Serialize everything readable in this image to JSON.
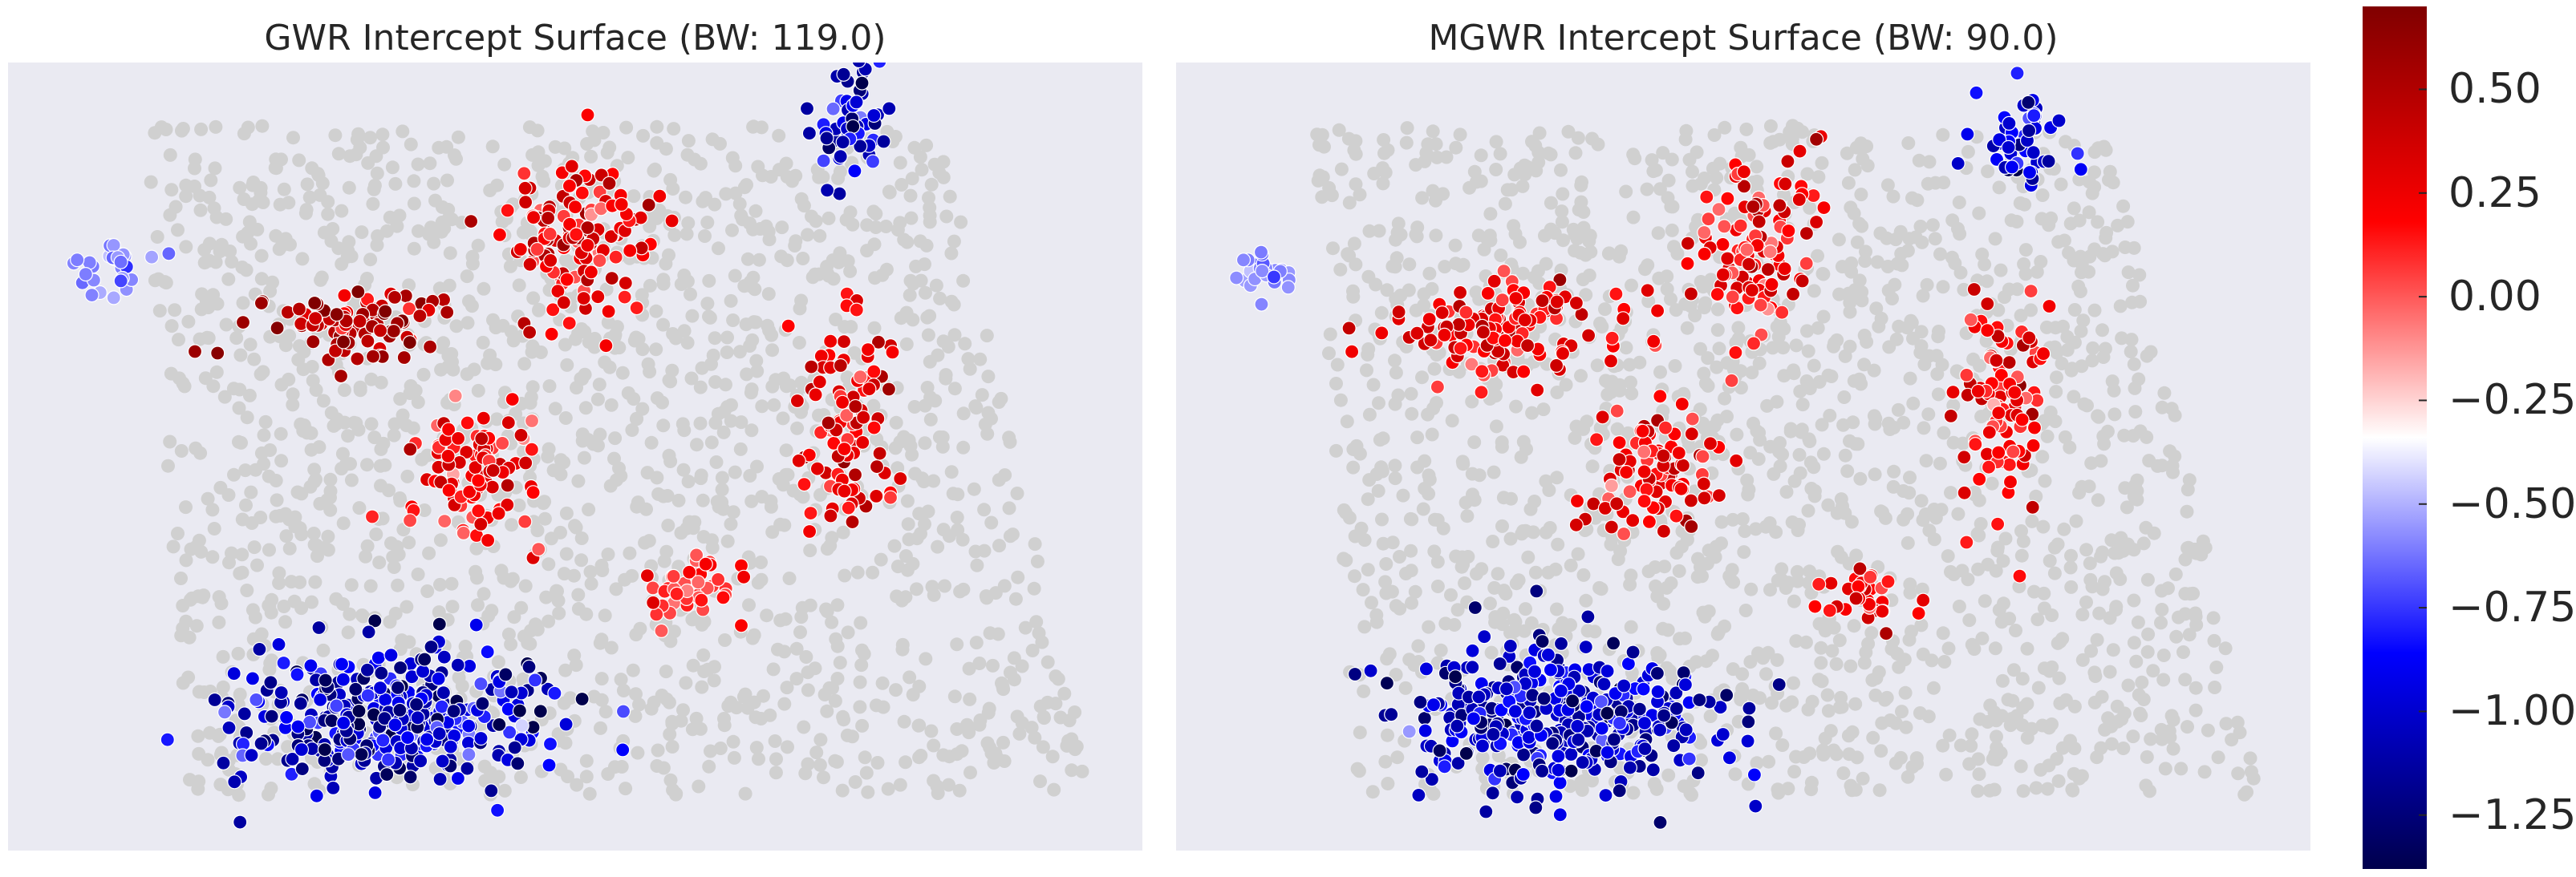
{
  "figure": {
    "colormap": "seismic",
    "background_color": "#eaeaf2",
    "nonsignificant_color": "#d0d0d0",
    "colorbar": {
      "vmin": -1.38,
      "vmax": 0.7,
      "ticks": [
        "0.50",
        "0.25",
        "0.00",
        "−0.25",
        "−0.50",
        "−0.75",
        "−1.00",
        "−1.25"
      ],
      "tick_values": [
        0.5,
        0.25,
        0.0,
        -0.25,
        -0.5,
        -0.75,
        -1.0,
        -1.25
      ]
    }
  },
  "chart_data": [
    {
      "type": "scatter",
      "title": "GWR Intercept Surface (BW: 119.0)",
      "grid": false,
      "legend": "none",
      "xlim": [
        0,
        100
      ],
      "ylim": [
        0,
        100
      ],
      "domain": {
        "x_left_top": 12,
        "x_right_top": 82,
        "x_left_bottom": 16,
        "x_right_bottom": 96,
        "y_top": 92,
        "y_bottom": 7
      },
      "clusters": [
        {
          "name": "blue-top-right",
          "cx": 74.5,
          "cy": 92,
          "sx": 2.3,
          "sy": 4.5,
          "value": -0.95,
          "spread": 0.25,
          "n": 55
        },
        {
          "name": "light-blue-left",
          "cx": 9,
          "cy": 75,
          "sx": 2.5,
          "sy": 3.0,
          "value": -0.35,
          "spread": 0.08,
          "n": 28
        },
        {
          "name": "dark-red-west",
          "cx": 30,
          "cy": 67,
          "sx": 5.5,
          "sy": 3.0,
          "value": 0.55,
          "spread": 0.12,
          "n": 90
        },
        {
          "name": "red-north",
          "cx": 50,
          "cy": 77,
          "sx": 4.5,
          "sy": 7.5,
          "value": 0.42,
          "spread": 0.12,
          "n": 125
        },
        {
          "name": "red-center",
          "cx": 42,
          "cy": 48,
          "sx": 4.0,
          "sy": 6.0,
          "value": 0.38,
          "spread": 0.1,
          "n": 95
        },
        {
          "name": "red-east",
          "cx": 74,
          "cy": 54,
          "sx": 3.0,
          "sy": 10,
          "value": 0.42,
          "spread": 0.1,
          "n": 95
        },
        {
          "name": "pink-south",
          "cx": 60,
          "cy": 33,
          "sx": 3.0,
          "sy": 2.5,
          "value": 0.28,
          "spread": 0.06,
          "n": 42
        },
        {
          "name": "blue-southwest",
          "cx": 34,
          "cy": 17,
          "sx": 9.5,
          "sy": 5.5,
          "value": -0.95,
          "spread": 0.28,
          "n": 360
        }
      ]
    },
    {
      "type": "scatter",
      "title": "MGWR Intercept Surface (BW: 90.0)",
      "grid": false,
      "legend": "none",
      "xlim": [
        0,
        100
      ],
      "ylim": [
        0,
        100
      ],
      "domain": {
        "x_left_top": 12,
        "x_right_top": 82,
        "x_left_bottom": 16,
        "x_right_bottom": 96,
        "y_top": 92,
        "y_bottom": 7
      },
      "clusters": [
        {
          "name": "blue-top-right",
          "cx": 75,
          "cy": 90,
          "sx": 2.5,
          "sy": 5,
          "value": -0.85,
          "spread": 0.2,
          "n": 55
        },
        {
          "name": "light-blue-left",
          "cx": 8,
          "cy": 74,
          "sx": 2.2,
          "sy": 3.0,
          "value": -0.32,
          "spread": 0.07,
          "n": 26
        },
        {
          "name": "red-west",
          "cx": 29,
          "cy": 66,
          "sx": 6.0,
          "sy": 4.0,
          "value": 0.4,
          "spread": 0.1,
          "n": 130
        },
        {
          "name": "red-north",
          "cx": 51,
          "cy": 76,
          "sx": 4.0,
          "sy": 8.0,
          "value": 0.38,
          "spread": 0.1,
          "n": 110
        },
        {
          "name": "red-center",
          "cx": 42,
          "cy": 48,
          "sx": 4.0,
          "sy": 6.0,
          "value": 0.42,
          "spread": 0.1,
          "n": 90
        },
        {
          "name": "red-east",
          "cx": 73,
          "cy": 55,
          "sx": 2.8,
          "sy": 10,
          "value": 0.38,
          "spread": 0.1,
          "n": 90
        },
        {
          "name": "red-south",
          "cx": 60,
          "cy": 32,
          "sx": 3.0,
          "sy": 2.2,
          "value": 0.38,
          "spread": 0.08,
          "n": 32
        },
        {
          "name": "blue-southwest",
          "cx": 34,
          "cy": 17,
          "sx": 9.5,
          "sy": 6.0,
          "value": -0.95,
          "spread": 0.22,
          "n": 380
        }
      ]
    }
  ]
}
